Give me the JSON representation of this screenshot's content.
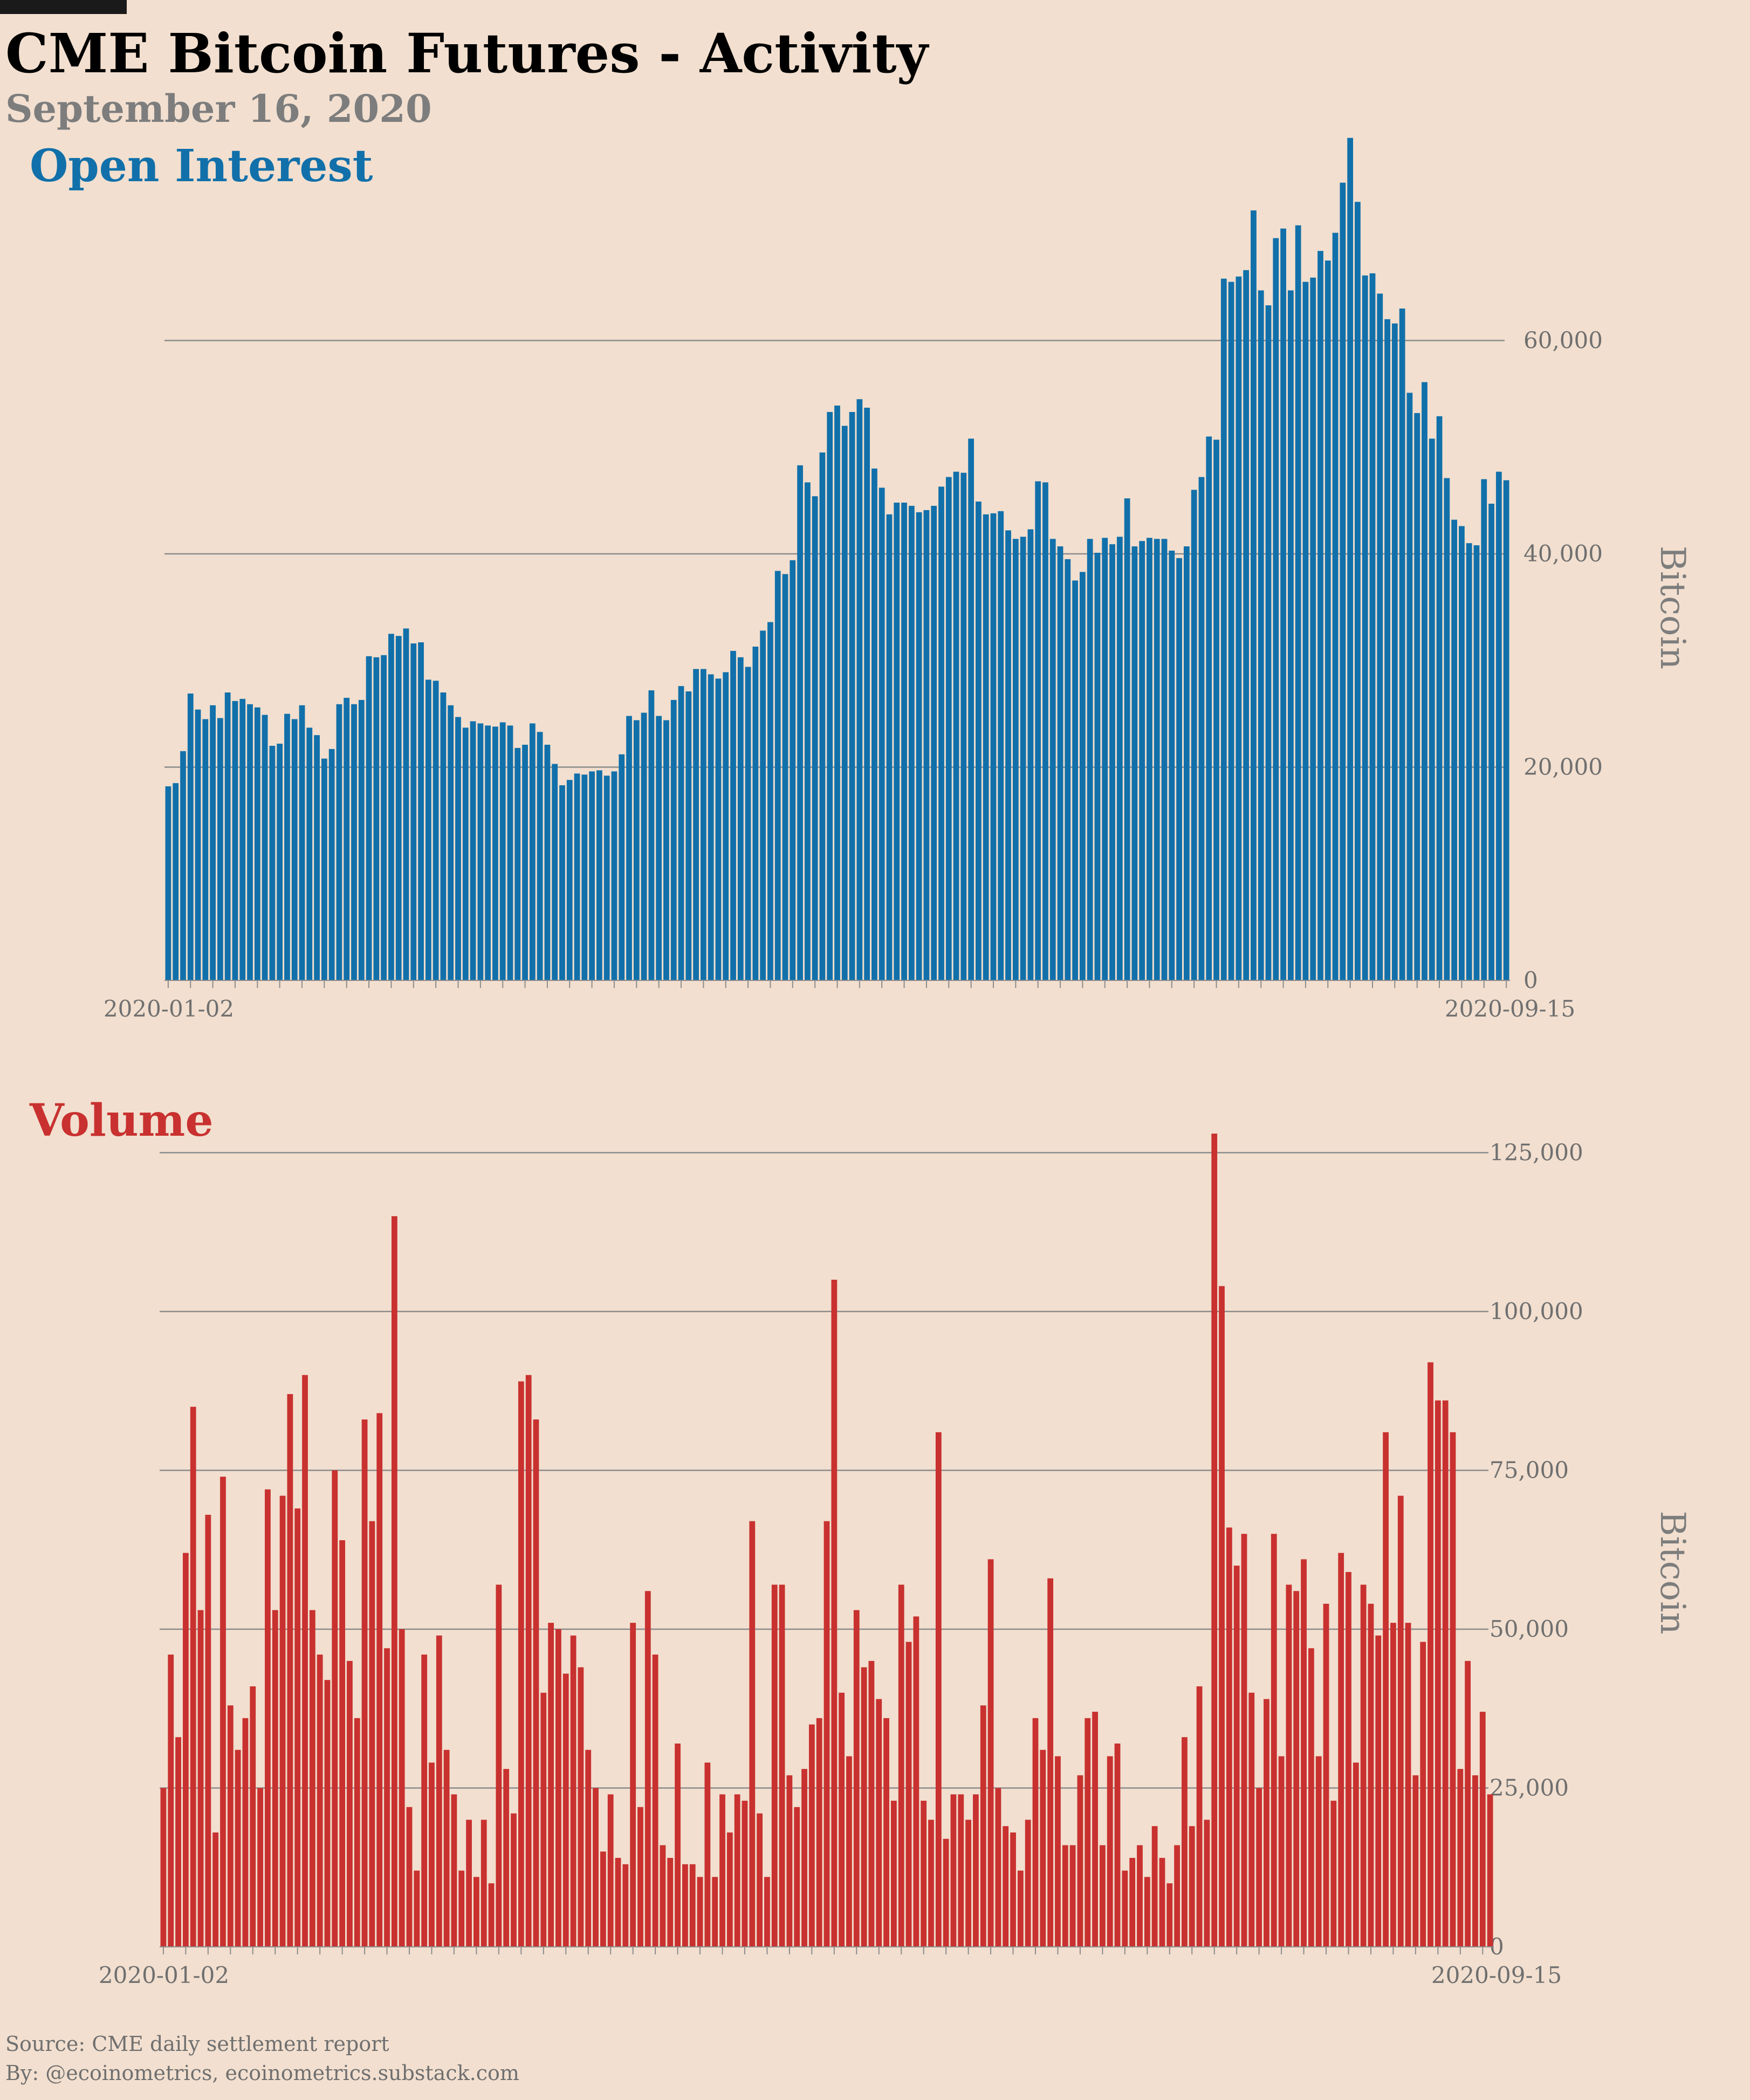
{
  "header": {
    "title": "CME Bitcoin Futures - Activity",
    "subtitle": "September 16, 2020"
  },
  "colors": {
    "background": "#f2dfcf",
    "open_interest": "#1170aa",
    "volume": "#c8312f",
    "grid": "#8c8c8c"
  },
  "footer": {
    "source": "Source: CME daily settlement report",
    "by": "By: @ecoinometrics, ecoinometrics.substack.com"
  },
  "chart_data": [
    {
      "type": "bar",
      "title": "Open Interest",
      "ylabel": "Bitcoin",
      "ylim": [
        0,
        76000
      ],
      "yticks": [
        0,
        20000,
        40000,
        60000
      ],
      "ytick_labels": [
        "0",
        "20,000",
        "40,000",
        "60,000"
      ],
      "x_start_label": "2020-01-02",
      "x_end_label": "2020-09-15",
      "grid": true,
      "values": [
        18200,
        18500,
        21500,
        26900,
        25400,
        24500,
        25800,
        24600,
        27000,
        26200,
        26400,
        25900,
        25600,
        24900,
        22000,
        22200,
        25000,
        24500,
        25800,
        23700,
        23000,
        20800,
        21700,
        25900,
        26500,
        25900,
        26300,
        30400,
        30300,
        30500,
        32500,
        32300,
        33000,
        31600,
        31700,
        28200,
        28100,
        27000,
        25800,
        24700,
        23700,
        24300,
        24100,
        23900,
        23800,
        24200,
        23900,
        21800,
        22100,
        24100,
        23300,
        22100,
        20300,
        18300,
        18800,
        19400,
        19300,
        19600,
        19700,
        19200,
        19600,
        21200,
        24800,
        24400,
        25100,
        27200,
        24800,
        24400,
        26300,
        27600,
        27100,
        29200,
        29200,
        28700,
        28300,
        28900,
        30900,
        30300,
        29400,
        31300,
        32800,
        33600,
        38400,
        38100,
        39400,
        48300,
        46700,
        45400,
        49500,
        53300,
        53900,
        52000,
        53300,
        54500,
        53700,
        48000,
        46200,
        43700,
        44800,
        44800,
        44500,
        43900,
        44100,
        44500,
        46300,
        47200,
        47700,
        47600,
        50800,
        44900,
        43700,
        43800,
        44000,
        42200,
        41400,
        41600,
        42300,
        46800,
        46700,
        41400,
        40700,
        39500,
        37500,
        38300,
        41400,
        40100,
        41500,
        40900,
        41600,
        45200,
        40700,
        41200,
        41500,
        41400,
        41400,
        40300,
        39600,
        40700,
        46000,
        47200,
        51000,
        50700,
        65800,
        65500,
        66000,
        66600,
        72200,
        64700,
        63300,
        69600,
        70500,
        64700,
        70800,
        65500,
        65900,
        68400,
        67500,
        70100,
        74800,
        79000,
        73000,
        66100,
        66300,
        64400,
        62000,
        61600,
        63000,
        55100,
        53200,
        56100,
        50800,
        52900,
        47100,
        43200,
        42600,
        41000,
        40800,
        47000,
        44700,
        47700,
        46900
      ],
      "x_axis": {
        "tick_every": 3
      }
    },
    {
      "type": "bar",
      "title": "Volume",
      "ylabel": "Bitcoin",
      "ylim": [
        0,
        128000
      ],
      "yticks": [
        0,
        25000,
        50000,
        75000,
        100000,
        125000
      ],
      "ytick_labels": [
        "0",
        "25,000",
        "50,000",
        "75,000",
        "100,000",
        "125,000"
      ],
      "x_start_label": "2020-01-02",
      "x_end_label": "2020-09-15",
      "grid": true,
      "values": [
        25000,
        46000,
        33000,
        62000,
        85000,
        53000,
        68000,
        18000,
        74000,
        38000,
        31000,
        36000,
        41000,
        25000,
        72000,
        53000,
        71000,
        87000,
        69000,
        90000,
        53000,
        46000,
        42000,
        75000,
        64000,
        45000,
        36000,
        83000,
        67000,
        84000,
        47000,
        115000,
        50000,
        22000,
        12000,
        46000,
        29000,
        49000,
        31000,
        24000,
        12000,
        20000,
        11000,
        20000,
        10000,
        57000,
        28000,
        21000,
        89000,
        90000,
        83000,
        40000,
        51000,
        50000,
        43000,
        49000,
        44000,
        31000,
        25000,
        15000,
        24000,
        14000,
        13000,
        51000,
        22000,
        56000,
        46000,
        16000,
        14000,
        32000,
        13000,
        13000,
        11000,
        29000,
        11000,
        24000,
        18000,
        24000,
        23000,
        67000,
        21000,
        11000,
        57000,
        57000,
        27000,
        22000,
        28000,
        35000,
        36000,
        67000,
        105000,
        40000,
        30000,
        53000,
        44000,
        45000,
        39000,
        36000,
        23000,
        57000,
        48000,
        52000,
        23000,
        20000,
        81000,
        17000,
        24000,
        24000,
        20000,
        24000,
        38000,
        61000,
        25000,
        19000,
        18000,
        12000,
        20000,
        36000,
        31000,
        58000,
        30000,
        16000,
        16000,
        27000,
        36000,
        37000,
        16000,
        30000,
        32000,
        12000,
        14000,
        16000,
        11000,
        19000,
        14000,
        10000,
        16000,
        33000,
        19000,
        41000,
        20000,
        128000,
        104000,
        66000,
        60000,
        65000,
        40000,
        25000,
        39000,
        65000,
        30000,
        57000,
        56000,
        61000,
        47000,
        30000,
        54000,
        23000,
        62000,
        59000,
        29000,
        57000,
        54000,
        49000,
        81000,
        51000,
        71000,
        51000,
        27000,
        48000,
        92000,
        86000,
        86000,
        81000,
        28000,
        45000,
        27000,
        37000,
        24000
      ],
      "x_axis": {
        "tick_every": 3
      }
    }
  ]
}
